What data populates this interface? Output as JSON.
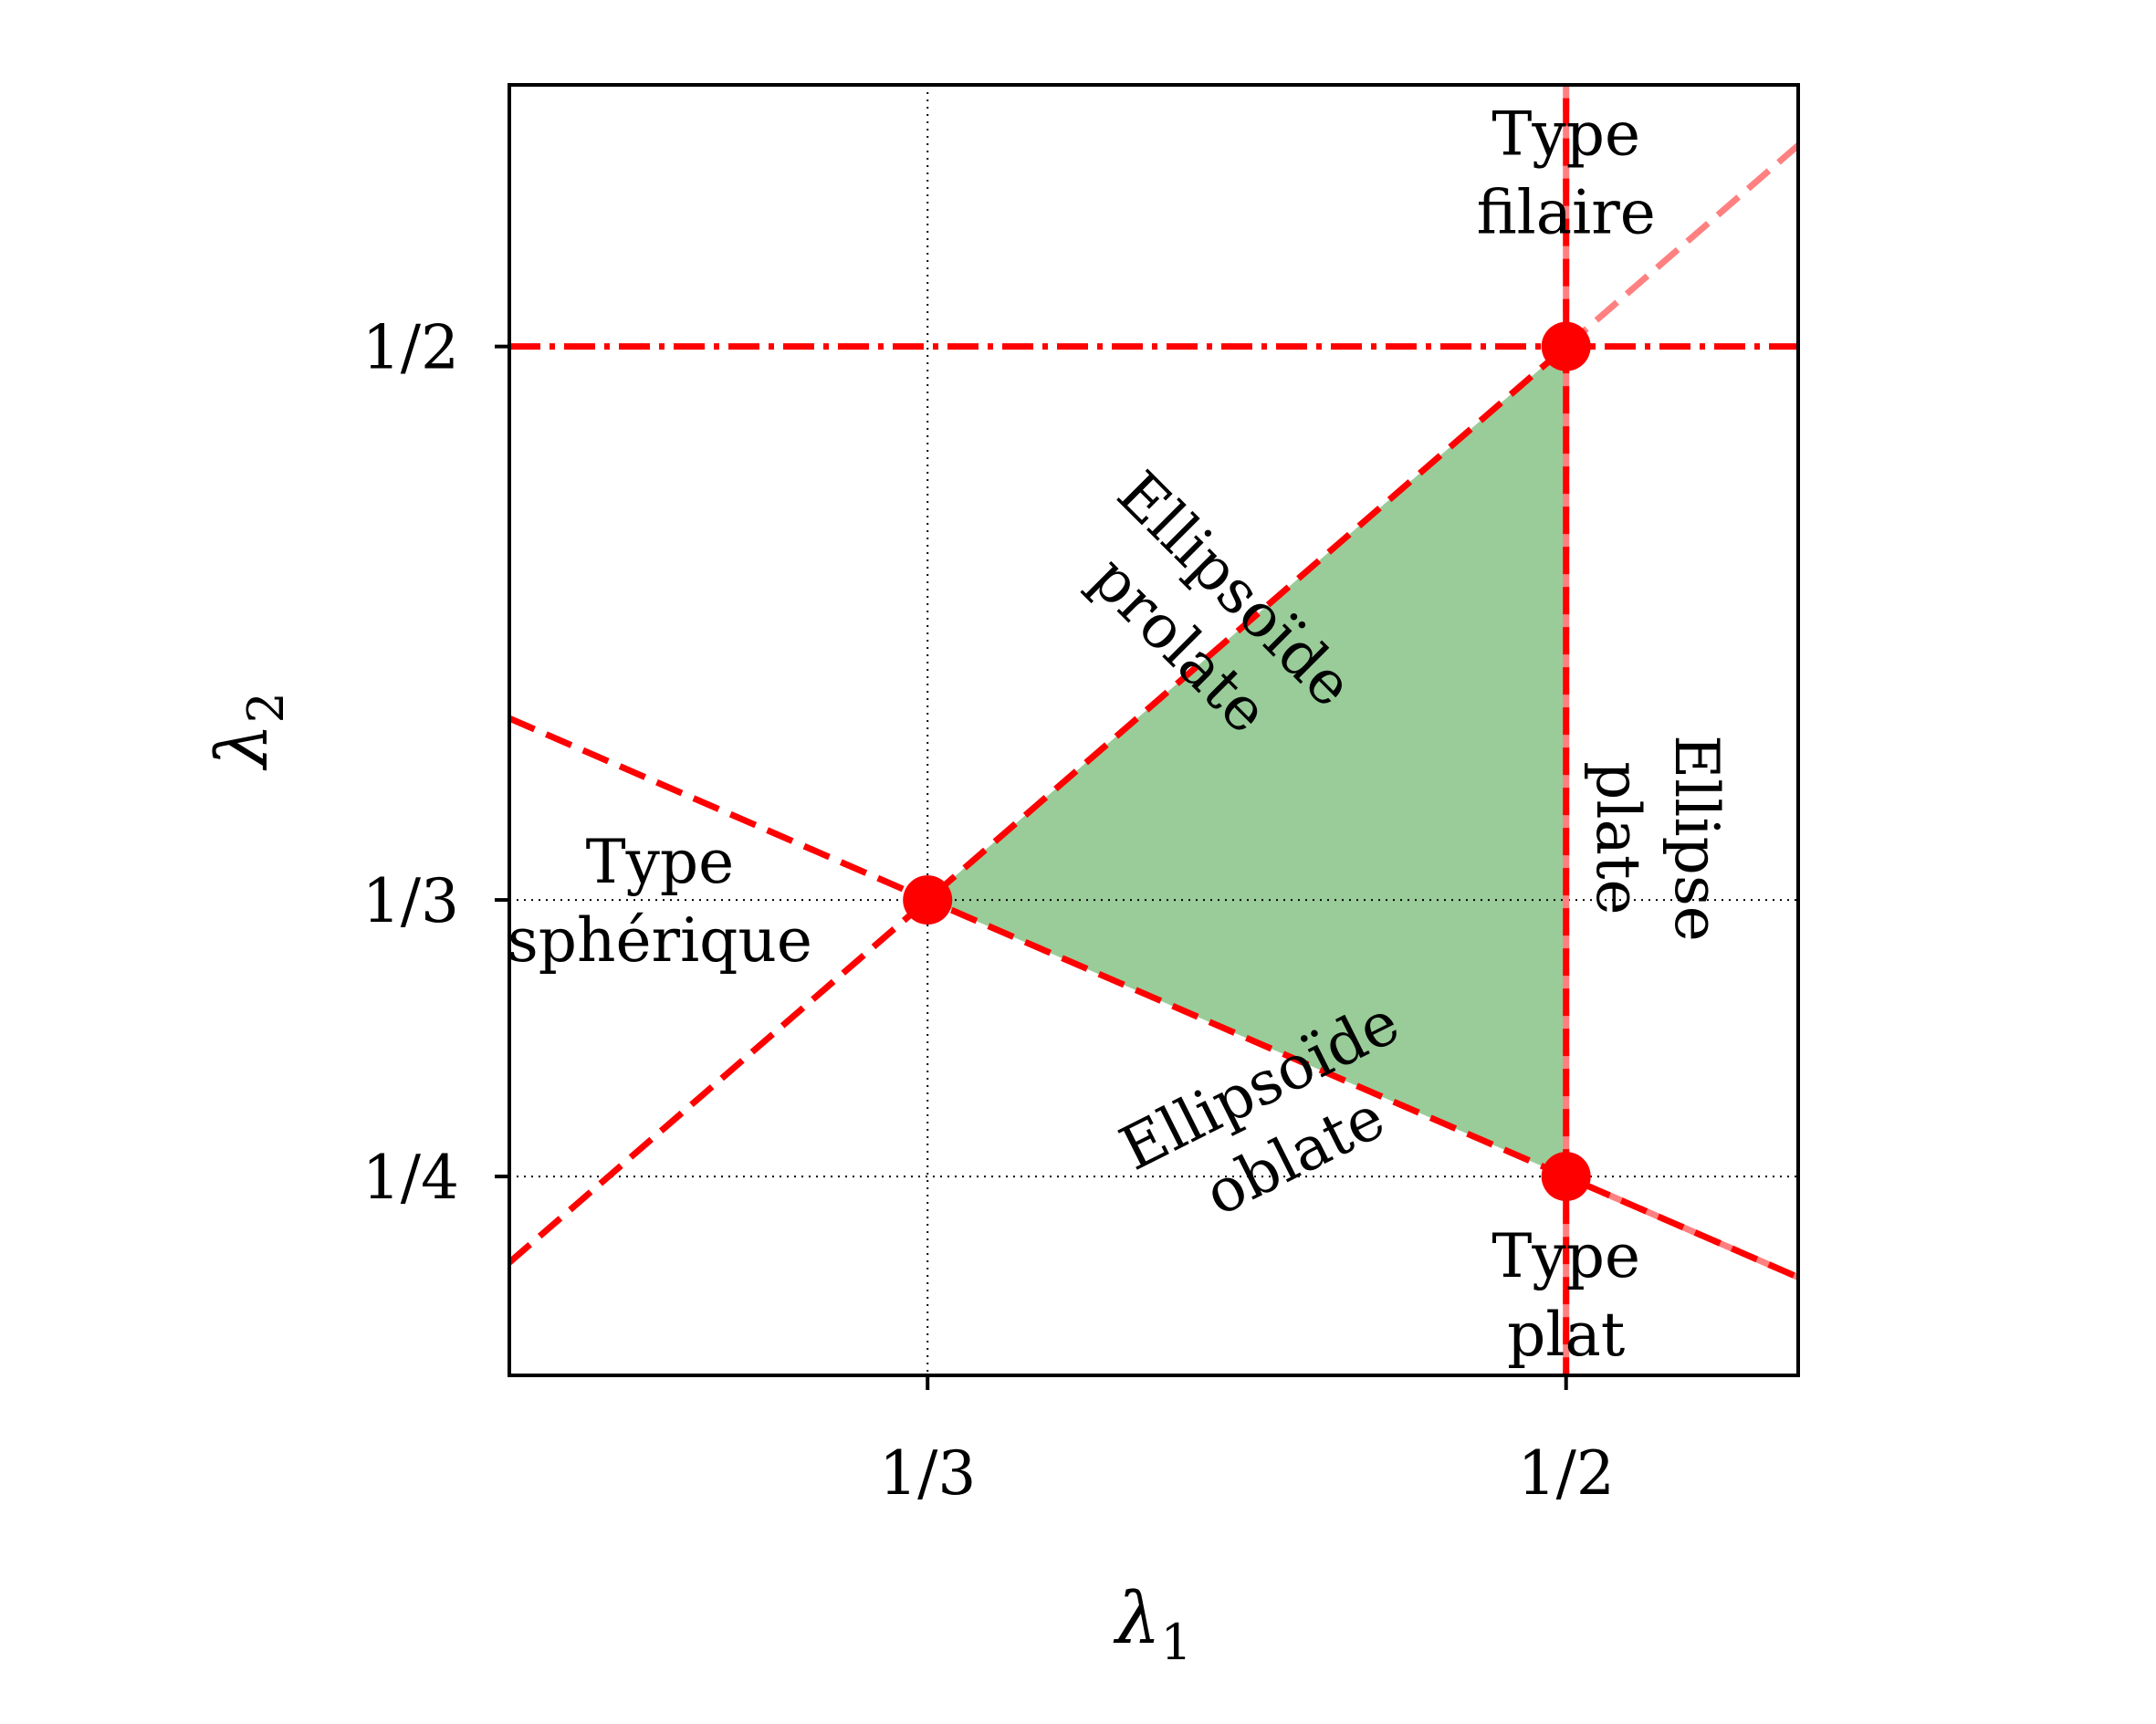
{
  "chart_data": {
    "type": "line",
    "xlabel": "λ",
    "xlabel_sub": "1",
    "ylabel": "λ",
    "ylabel_sub": "2",
    "xlim": [
      0.2241,
      0.5606
    ],
    "ylim": [
      0.1901,
      0.5788
    ],
    "x_ticks": [
      {
        "value": 0.3333,
        "label": "1/3"
      },
      {
        "value": 0.5,
        "label": "1/2"
      }
    ],
    "y_ticks": [
      {
        "value": 0.25,
        "label": "1/4"
      },
      {
        "value": 0.3333,
        "label": "1/3"
      },
      {
        "value": 0.5,
        "label": "1/2"
      }
    ],
    "grid": "dotted lines at λ1 = 1/3, 1/2 and λ2 = 1/4, 1/3",
    "colors": {
      "line": "#ff0000",
      "line_faded": "#ff8080",
      "region": "#99cc99",
      "point": "#ff0000"
    },
    "lines": [
      {
        "style": "dashed",
        "x": [
          0.2241,
          0.5606
        ],
        "y": [
          0.2241,
          0.5606
        ]
      },
      {
        "style": "dashed",
        "x": [
          0.2241,
          0.5606
        ],
        "y": [
          0.388,
          0.2197
        ]
      },
      {
        "style": "dashed",
        "x": [
          0.5,
          0.5
        ],
        "y": [
          0.1901,
          0.5788
        ]
      },
      {
        "style": "dashdot",
        "x": [
          0.2241,
          0.5606
        ],
        "y": [
          0.5,
          0.5
        ]
      }
    ],
    "region": {
      "x": [
        0.3333,
        0.5,
        0.5
      ],
      "y": [
        0.3333,
        0.5,
        0.25
      ]
    },
    "points": [
      {
        "x": 0.3333,
        "y": 0.3333
      },
      {
        "x": 0.5,
        "y": 0.5
      },
      {
        "x": 0.5,
        "y": 0.25
      }
    ],
    "annotations": [
      {
        "lines": [
          "Type",
          "sphérique"
        ],
        "x": 0.2634,
        "y": 0.3333,
        "rotation": 0
      },
      {
        "lines": [
          "Type",
          "filaire"
        ],
        "x": 0.5,
        "y": 0.5525,
        "rotation": 0
      },
      {
        "lines": [
          "Type",
          "plat"
        ],
        "x": 0.5,
        "y": 0.2145,
        "rotation": 0
      },
      {
        "lines": [
          "Ellipsoïde",
          "prolate"
        ],
        "x": 0.4066,
        "y": 0.4188,
        "rotation": -45
      },
      {
        "lines": [
          "Ellipsoïde",
          "oblate"
        ],
        "x": 0.4244,
        "y": 0.2672,
        "rotation": 26.6
      },
      {
        "lines": [
          "Ellipse",
          "plate"
        ],
        "x": 0.5241,
        "y": 0.3519,
        "rotation": -90
      }
    ]
  }
}
